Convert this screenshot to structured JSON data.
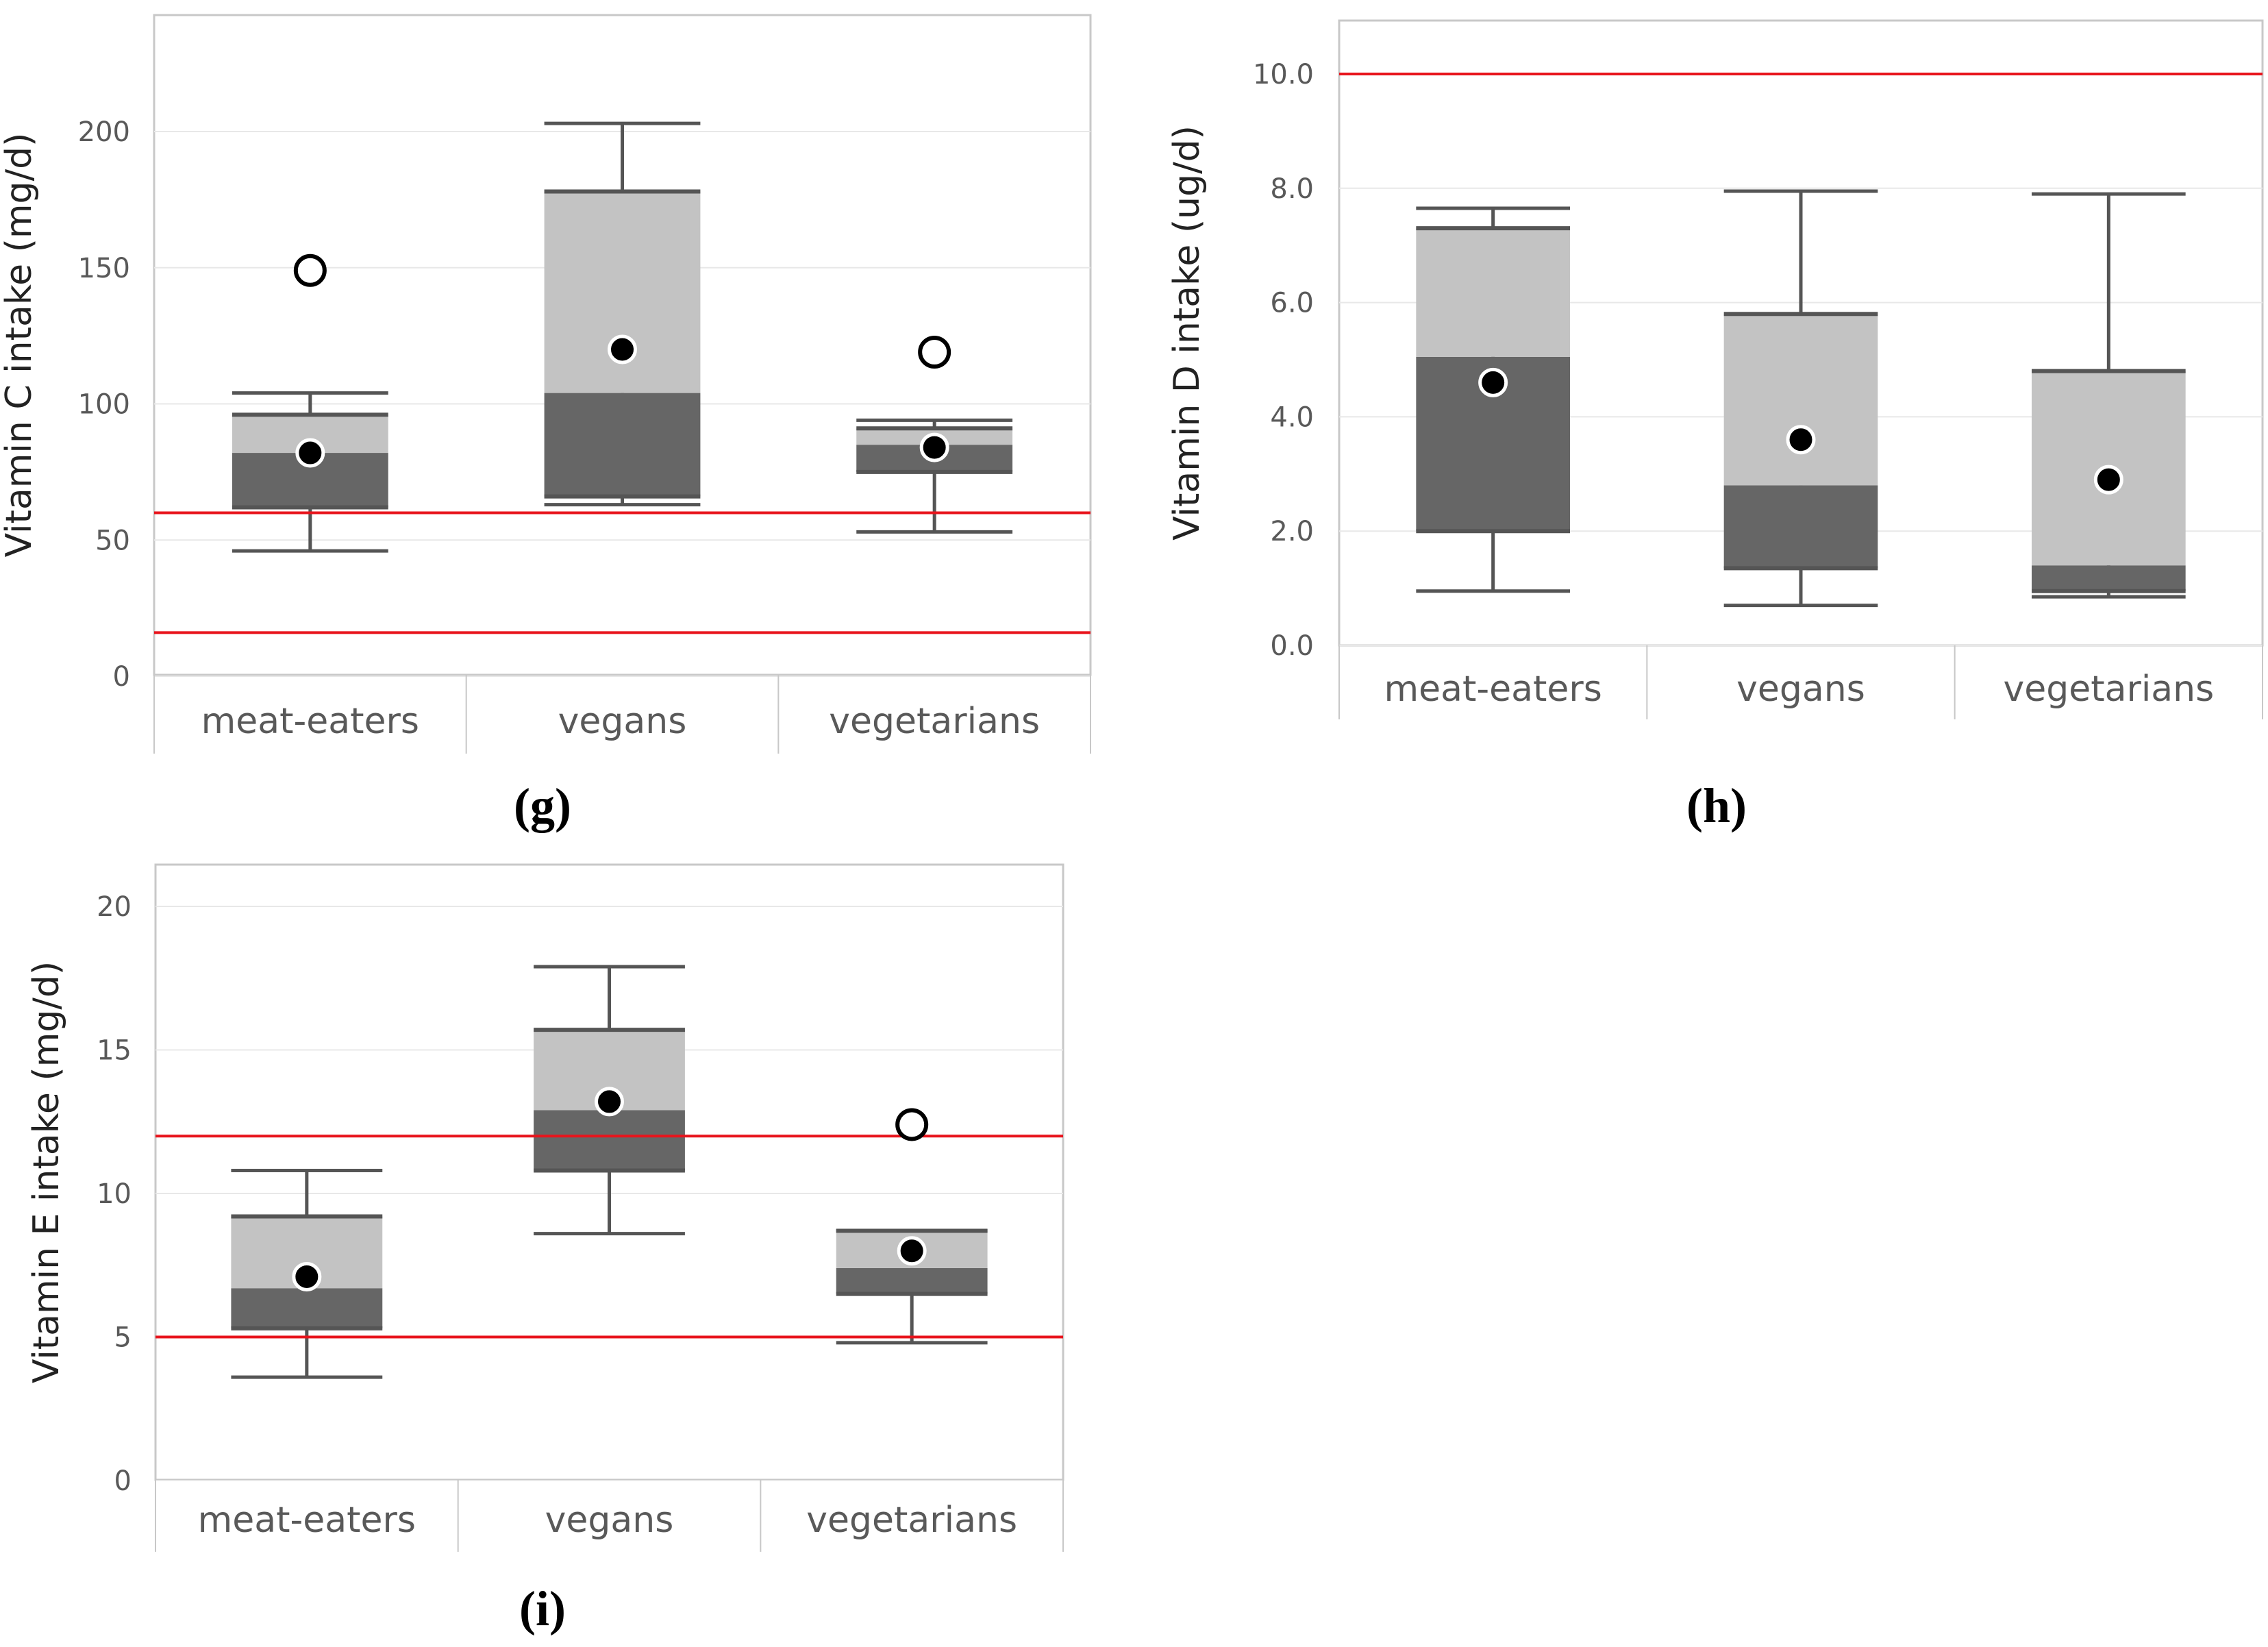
{
  "figure": {
    "captions": {
      "g": "(g)",
      "h": "(h)",
      "i": "(i)"
    }
  },
  "colors": {
    "lower_box": "#666666",
    "upper_box": "#c3c3c3",
    "whisker": "#555555",
    "reference_line": "#e8141c",
    "mean_marker": "#000000",
    "outlier_marker": "#ffffff",
    "grid": "#e8e8e8",
    "frame": "#c8c8c8",
    "text": "#595959"
  },
  "chart_data": [
    {
      "id": "g",
      "type": "box",
      "title": "",
      "xlabel": "",
      "ylabel": "Vitamin C intake (mg/d)",
      "categories": [
        "meat-eaters",
        "vegans",
        "vegetarians"
      ],
      "ylim": [
        0,
        240
      ],
      "yticks": [
        0,
        50,
        100,
        150,
        200
      ],
      "ytick_labels": [
        "0",
        "50",
        "100",
        "150",
        "200"
      ],
      "reference_lines": [
        60,
        16
      ],
      "grid": true,
      "series": [
        {
          "name": "meat-eaters",
          "whisker_low": 46,
          "q1": 62,
          "median": 82,
          "q3": 96,
          "whisker_high": 104,
          "mean": 82,
          "outliers": [
            149
          ]
        },
        {
          "name": "vegans",
          "whisker_low": 63,
          "q1": 66,
          "median": 104,
          "q3": 178,
          "whisker_high": 203,
          "mean": 120,
          "outliers": []
        },
        {
          "name": "vegetarians",
          "whisker_low": 53,
          "q1": 75,
          "median": 85,
          "q3": 91,
          "whisker_high": 94,
          "mean": 84,
          "outliers": [
            119
          ]
        }
      ]
    },
    {
      "id": "h",
      "type": "box",
      "title": "",
      "xlabel": "",
      "ylabel": "Vitamin D intake (ug/d)",
      "categories": [
        "meat-eaters",
        "vegans",
        "vegetarians"
      ],
      "ylim": [
        0,
        11
      ],
      "yticks": [
        0,
        2,
        4,
        6,
        8,
        10
      ],
      "ytick_labels": [
        "0.0",
        "2.0",
        "4.0",
        "6.0",
        "8.0",
        "10.0"
      ],
      "reference_lines": [
        10
      ],
      "grid": true,
      "series": [
        {
          "name": "meat-eaters",
          "whisker_low": 0.95,
          "q1": 2.0,
          "median": 5.05,
          "q3": 7.3,
          "whisker_high": 7.65,
          "mean": 4.6,
          "outliers": []
        },
        {
          "name": "vegans",
          "whisker_low": 0.7,
          "q1": 1.35,
          "median": 2.8,
          "q3": 5.8,
          "whisker_high": 7.95,
          "mean": 3.6,
          "outliers": []
        },
        {
          "name": "vegetarians",
          "whisker_low": 0.85,
          "q1": 0.95,
          "median": 1.4,
          "q3": 4.8,
          "whisker_high": 7.9,
          "mean": 2.9,
          "outliers": []
        }
      ]
    },
    {
      "id": "i",
      "type": "box",
      "title": "",
      "xlabel": "",
      "ylabel": "Vitamin E intake (mg/d)",
      "categories": [
        "meat-eaters",
        "vegans",
        "vegetarians"
      ],
      "ylim": [
        0,
        21
      ],
      "yticks": [
        0,
        5,
        10,
        15,
        20
      ],
      "ytick_labels": [
        "0",
        "5",
        "10",
        "15",
        "20"
      ],
      "reference_lines": [
        12,
        5
      ],
      "grid": true,
      "series": [
        {
          "name": "meat-eaters",
          "whisker_low": 3.6,
          "q1": 5.3,
          "median": 6.7,
          "q3": 9.2,
          "whisker_high": 10.8,
          "mean": 7.1,
          "outliers": []
        },
        {
          "name": "vegans",
          "whisker_low": 8.6,
          "q1": 10.8,
          "median": 12.9,
          "q3": 15.7,
          "whisker_high": 17.9,
          "mean": 13.2,
          "outliers": []
        },
        {
          "name": "vegetarians",
          "whisker_low": 4.8,
          "q1": 6.5,
          "median": 7.4,
          "q3": 8.7,
          "whisker_high": 8.7,
          "mean": 8.0,
          "outliers": [
            12.4
          ]
        }
      ]
    }
  ]
}
